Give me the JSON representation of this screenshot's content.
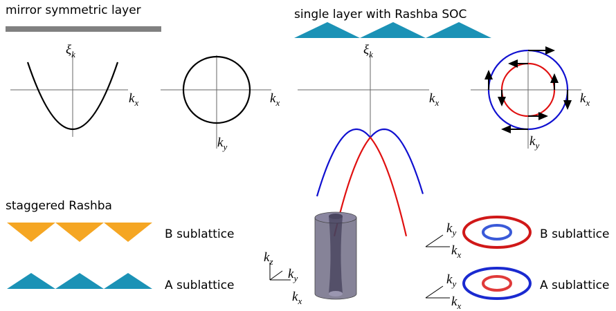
{
  "sections": {
    "mirror": {
      "title": "mirror symmetric layer",
      "dispersion": {
        "y_label": {
          "base": "ξ",
          "sub": "k⃗"
        },
        "x_label": {
          "base": "k",
          "sub": "x"
        }
      },
      "fermi_surface": {
        "x_label": {
          "base": "k",
          "sub": "x"
        },
        "y_label": {
          "base": "k",
          "sub": "y"
        }
      }
    },
    "rashba": {
      "title": "single layer with Rashba SOC",
      "dispersion": {
        "y_label": {
          "base": "ξ",
          "sub": "k⃗"
        },
        "x_label": {
          "base": "k",
          "sub": "x"
        }
      },
      "fermi_surface": {
        "x_label": {
          "base": "k",
          "sub": "x"
        },
        "y_label": {
          "base": "k",
          "sub": "y"
        }
      }
    },
    "staggered": {
      "title": "staggered Rashba",
      "layers": [
        "B sublattice",
        "A sublattice"
      ],
      "axes3d": {
        "z": {
          "base": "k",
          "sub": "z"
        },
        "y": {
          "base": "k",
          "sub": "y"
        },
        "x": {
          "base": "k",
          "sub": "x"
        }
      },
      "fermi": [
        {
          "label": "B sublattice",
          "y": {
            "base": "k",
            "sub": "y"
          },
          "x": {
            "base": "k",
            "sub": "x"
          }
        },
        {
          "label": "A sublattice",
          "y": {
            "base": "k",
            "sub": "y"
          },
          "x": {
            "base": "k",
            "sub": "x"
          }
        }
      ]
    }
  }
}
